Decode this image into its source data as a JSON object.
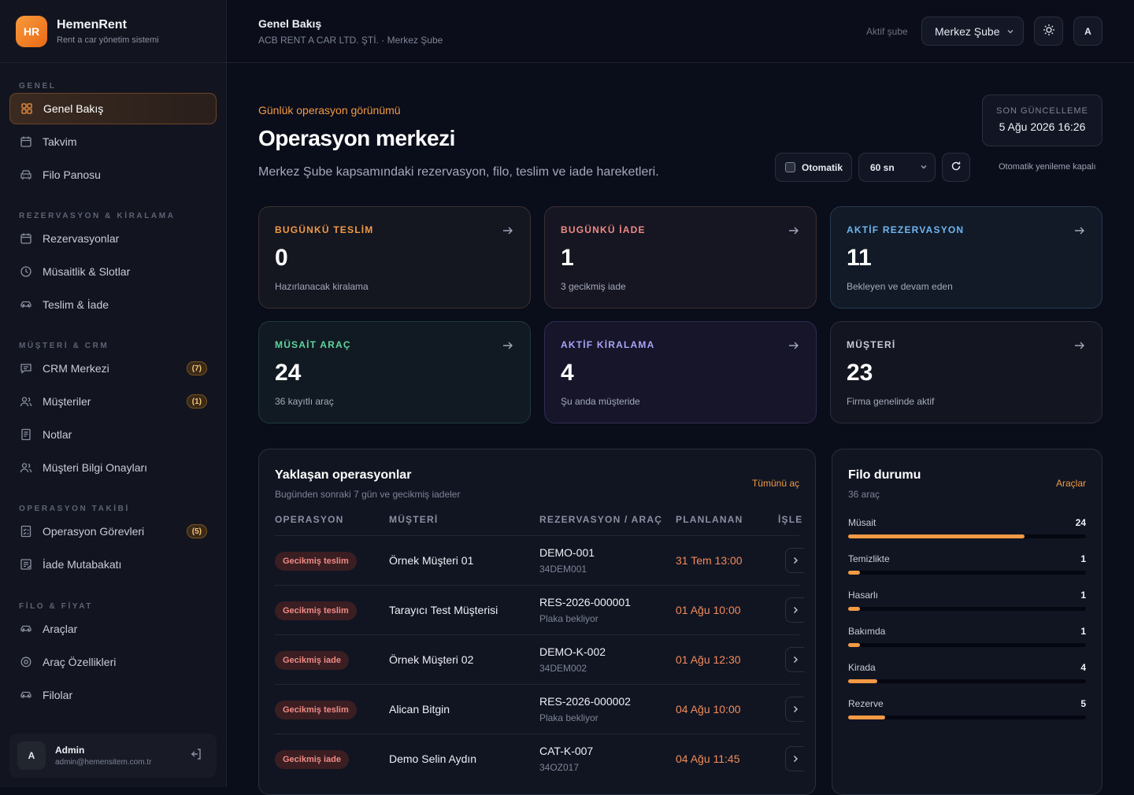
{
  "brand": {
    "logo": "HR",
    "name": "HemenRent",
    "sub": "Rent a car yönetim sistemi"
  },
  "nav": {
    "sections": [
      "GENEL",
      "REZERVASYON & KİRALAMA",
      "MÜŞTERİ & CRM",
      "OPERASYON TAKİBİ",
      "FİLO & FİYAT"
    ],
    "items": [
      {
        "label": "Genel Bakış",
        "icon": "grid-icon"
      },
      {
        "label": "Takvim",
        "icon": "calendar-icon"
      },
      {
        "label": "Filo Panosu",
        "icon": "car-front-icon"
      },
      {
        "label": "Rezervasyonlar",
        "icon": "calendar-icon"
      },
      {
        "label": "Müsaitlik & Slotlar",
        "icon": "clock-icon"
      },
      {
        "label": "Teslim & İade",
        "icon": "car-icon"
      },
      {
        "label": "CRM Merkezi",
        "icon": "message-icon",
        "badge": "(7)"
      },
      {
        "label": "Müşteriler",
        "icon": "users-icon",
        "badge": "(1)"
      },
      {
        "label": "Notlar",
        "icon": "note-icon"
      },
      {
        "label": "Müşteri Bilgi Onayları",
        "icon": "users-icon"
      },
      {
        "label": "Operasyon Görevleri",
        "icon": "checklist-icon",
        "badge": "(5)"
      },
      {
        "label": "İade Mutabakatı",
        "icon": "ledger-icon"
      },
      {
        "label": "Araçlar",
        "icon": "car-icon"
      },
      {
        "label": "Araç Özellikleri",
        "icon": "gear-icon"
      },
      {
        "label": "Filolar",
        "icon": "car-icon"
      }
    ]
  },
  "user": {
    "initial": "A",
    "name": "Admin",
    "email": "admin@hemensitem.com.tr"
  },
  "topbar": {
    "title": "Genel Bakış",
    "subtitle": "ACB RENT A CAR LTD. ŞTİ. · Merkez Şube",
    "branch_label": "Aktif şube",
    "branch_value": "Merkez Şube",
    "avatar": "A"
  },
  "hero": {
    "eyebrow": "Günlük operasyon görünümü",
    "title": "Operasyon merkezi",
    "description": "Merkez Şube kapsamındaki rezervasyon, filo, teslim ve iade hareketleri."
  },
  "last_update": {
    "label": "SON GÜNCELLEME",
    "value": "5 Ağu 2026 16:26"
  },
  "refresh": {
    "auto_label": "Otomatik",
    "interval": "60 sn",
    "note": "Otomatik yenileme kapalı"
  },
  "kpis": [
    {
      "label": "BUGÜNKÜ TESLİM",
      "value": "0",
      "sub": "Hazırlanacak kiralama",
      "color": "#f29a44"
    },
    {
      "label": "BUGÜNKÜ İADE",
      "value": "1",
      "sub": "3 gecikmiş iade",
      "color": "#f08a84"
    },
    {
      "label": "AKTİF REZERVASYON",
      "value": "11",
      "sub": "Bekleyen ve devam eden",
      "color": "#6fb6f0"
    },
    {
      "label": "MÜSAİT ARAÇ",
      "value": "24",
      "sub": "36 kayıtlı araç",
      "color": "#5fd4a0"
    },
    {
      "label": "AKTİF KİRALAMA",
      "value": "4",
      "sub": "Şu anda müşteride",
      "color": "#a9a4f6"
    },
    {
      "label": "MÜŞTERİ",
      "value": "23",
      "sub": "Firma genelinde aktif",
      "color": "#c8ccd8"
    }
  ],
  "ops": {
    "title": "Yaklaşan operasyonlar",
    "subtitle": "Bugünden sonraki 7 gün ve gecikmiş iadeler",
    "link": "Tümünü aç",
    "columns": [
      "OPERASYON",
      "MÜŞTERİ",
      "REZERVASYON / ARAÇ",
      "PLANLANAN",
      "İŞLE"
    ],
    "rows": [
      {
        "status": "Gecikmiş teslim",
        "customer": "Örnek Müşteri 01",
        "ref": "DEMO-001",
        "plate": "34DEM001",
        "planned": "31 Tem 13:00"
      },
      {
        "status": "Gecikmiş teslim",
        "customer": "Tarayıcı Test Müşterisi",
        "ref": "RES-2026-000001",
        "plate": "Plaka bekliyor",
        "planned": "01 Ağu 10:00"
      },
      {
        "status": "Gecikmiş iade",
        "customer": "Örnek Müşteri 02",
        "ref": "DEMO-K-002",
        "plate": "34DEM002",
        "planned": "01 Ağu 12:30"
      },
      {
        "status": "Gecikmiş teslim",
        "customer": "Alican Bitgin",
        "ref": "RES-2026-000002",
        "plate": "Plaka bekliyor",
        "planned": "04 Ağu 10:00"
      },
      {
        "status": "Gecikmiş iade",
        "customer": "Demo Selin Aydın",
        "ref": "CAT-K-007",
        "plate": "34OZ017",
        "planned": "04 Ağu 11:45"
      }
    ]
  },
  "fleet": {
    "title": "Filo durumu",
    "subtitle": "36 araç",
    "link": "Araçlar",
    "total": 36,
    "rows": [
      {
        "label": "Müsait",
        "value": 24
      },
      {
        "label": "Temizlikte",
        "value": 1
      },
      {
        "label": "Hasarlı",
        "value": 1
      },
      {
        "label": "Bakımda",
        "value": 1
      },
      {
        "label": "Kirada",
        "value": 4
      },
      {
        "label": "Rezerve",
        "value": 5
      }
    ]
  }
}
